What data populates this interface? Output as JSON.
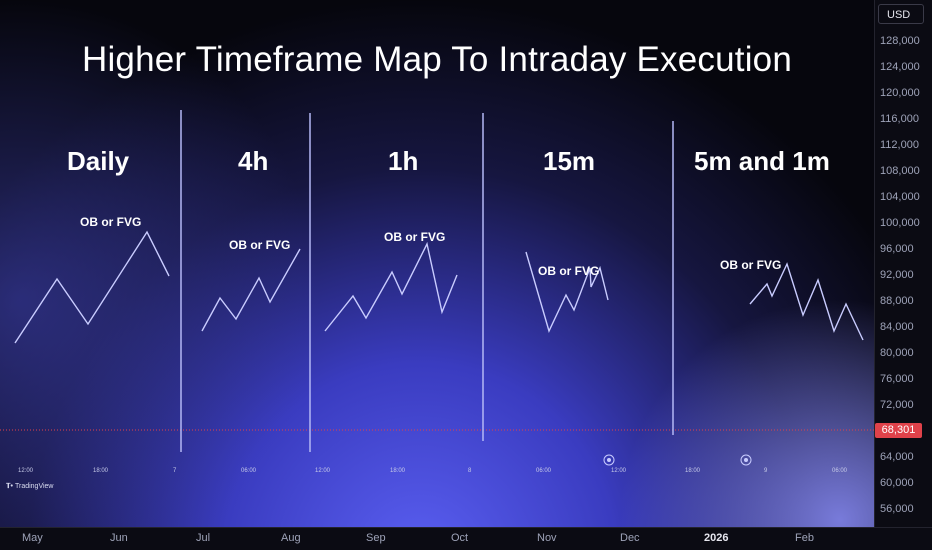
{
  "title": "Higher Timeframe Map To Intraday Execution",
  "sections": [
    {
      "label": "Daily",
      "annotation": "OB or FVG"
    },
    {
      "label": "4h",
      "annotation": "OB or FVG"
    },
    {
      "label": "1h",
      "annotation": "OB or FVG"
    },
    {
      "label": "15m",
      "annotation": "OB or FVG"
    },
    {
      "label": "5m and 1m",
      "annotation": "OB or FVG"
    }
  ],
  "currency": "USD",
  "price_axis": [
    "128,000",
    "124,000",
    "120,000",
    "116,000",
    "112,000",
    "108,000",
    "104,000",
    "100,000",
    "96,000",
    "92,000",
    "88,000",
    "84,000",
    "80,000",
    "76,000",
    "72,000",
    "64,000",
    "60,000",
    "56,000"
  ],
  "last_price": "68,301",
  "intraday_times": [
    "12:00",
    "18:00",
    "7",
    "06:00",
    "12:00",
    "18:00",
    "8",
    "06:00",
    "12:00",
    "18:00",
    "9",
    "06:00"
  ],
  "months": [
    "May",
    "Jun",
    "Jul",
    "Aug",
    "Sep",
    "Oct",
    "Nov",
    "Dec",
    "2026",
    "Feb"
  ],
  "brand": "TradingView",
  "colors": {
    "accent": "#7b7ff0",
    "divider": "#b4b8f5",
    "price_line": "#e0424a",
    "path": "#c9ccff",
    "glow": "#5a5ff2"
  }
}
